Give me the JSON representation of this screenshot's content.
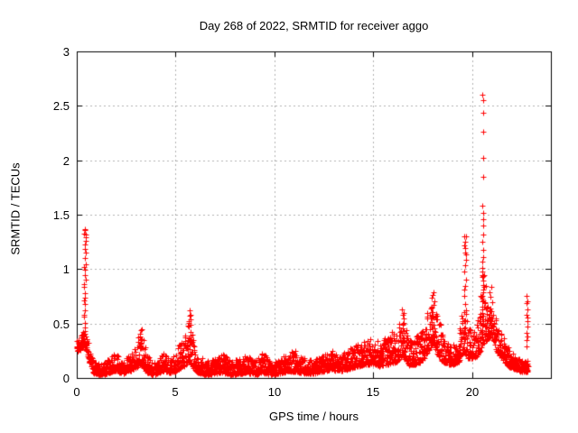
{
  "window": {
    "background": "#ffffff"
  },
  "chart_data": {
    "type": "scatter",
    "title": "Day 268 of 2022, SRMTID for receiver aggo",
    "xlabel": "GPS time / hours",
    "ylabel": "SRMTID / TECUs",
    "xlim": [
      0,
      24
    ],
    "ylim": [
      0,
      3
    ],
    "grid": true,
    "legend": "none",
    "marker": "plus",
    "marker_color": "#ff0000",
    "grid_color": "#b0b0b0",
    "border_color": "#000000",
    "xticks": [
      {
        "v": 0,
        "label": "0"
      },
      {
        "v": 5,
        "label": "5"
      },
      {
        "v": 10,
        "label": "10"
      },
      {
        "v": 15,
        "label": "15"
      },
      {
        "v": 20,
        "label": "20"
      }
    ],
    "yticks": [
      {
        "v": 0,
        "label": "0"
      },
      {
        "v": 0.5,
        "label": "0.5"
      },
      {
        "v": 1,
        "label": "1"
      },
      {
        "v": 1.5,
        "label": "1.5"
      },
      {
        "v": 2,
        "label": "2"
      },
      {
        "v": 2.5,
        "label": "2.5"
      },
      {
        "v": 3,
        "label": "3"
      }
    ],
    "band_envelope_t_lo_hi": [
      [
        0.0,
        0.24,
        0.38
      ],
      [
        0.2,
        0.26,
        0.4
      ],
      [
        0.35,
        0.3,
        0.5
      ],
      [
        0.5,
        0.25,
        0.42
      ],
      [
        0.65,
        0.12,
        0.28
      ],
      [
        0.85,
        0.04,
        0.15
      ],
      [
        1.3,
        0.03,
        0.13
      ],
      [
        1.7,
        0.05,
        0.2
      ],
      [
        2.0,
        0.07,
        0.24
      ],
      [
        2.3,
        0.04,
        0.15
      ],
      [
        2.6,
        0.06,
        0.2
      ],
      [
        2.9,
        0.08,
        0.26
      ],
      [
        3.15,
        0.12,
        0.4
      ],
      [
        3.3,
        0.12,
        0.42
      ],
      [
        3.5,
        0.06,
        0.25
      ],
      [
        3.8,
        0.03,
        0.13
      ],
      [
        4.1,
        0.04,
        0.16
      ],
      [
        4.4,
        0.07,
        0.24
      ],
      [
        4.7,
        0.05,
        0.17
      ],
      [
        5.0,
        0.06,
        0.22
      ],
      [
        5.3,
        0.1,
        0.38
      ],
      [
        5.55,
        0.12,
        0.45
      ],
      [
        5.7,
        0.15,
        0.58
      ],
      [
        5.85,
        0.1,
        0.42
      ],
      [
        6.1,
        0.05,
        0.22
      ],
      [
        6.5,
        0.03,
        0.16
      ],
      [
        7.0,
        0.04,
        0.2
      ],
      [
        7.4,
        0.05,
        0.23
      ],
      [
        7.8,
        0.03,
        0.16
      ],
      [
        8.2,
        0.04,
        0.18
      ],
      [
        8.6,
        0.05,
        0.21
      ],
      [
        9.0,
        0.03,
        0.16
      ],
      [
        9.4,
        0.05,
        0.25
      ],
      [
        9.8,
        0.03,
        0.15
      ],
      [
        10.2,
        0.04,
        0.17
      ],
      [
        10.7,
        0.06,
        0.24
      ],
      [
        11.1,
        0.06,
        0.25
      ],
      [
        11.5,
        0.04,
        0.18
      ],
      [
        12.0,
        0.04,
        0.16
      ],
      [
        12.5,
        0.06,
        0.22
      ],
      [
        12.9,
        0.08,
        0.25
      ],
      [
        13.3,
        0.06,
        0.21
      ],
      [
        13.7,
        0.08,
        0.26
      ],
      [
        14.1,
        0.1,
        0.3
      ],
      [
        14.5,
        0.12,
        0.34
      ],
      [
        15.0,
        0.13,
        0.38
      ],
      [
        15.4,
        0.1,
        0.34
      ],
      [
        15.8,
        0.13,
        0.4
      ],
      [
        16.2,
        0.15,
        0.45
      ],
      [
        16.5,
        0.2,
        0.58
      ],
      [
        16.8,
        0.12,
        0.35
      ],
      [
        17.2,
        0.12,
        0.38
      ],
      [
        17.6,
        0.18,
        0.48
      ],
      [
        17.9,
        0.28,
        0.7
      ],
      [
        18.05,
        0.3,
        0.76
      ],
      [
        18.3,
        0.2,
        0.55
      ],
      [
        18.6,
        0.14,
        0.36
      ],
      [
        19.0,
        0.12,
        0.3
      ],
      [
        19.35,
        0.15,
        0.38
      ],
      [
        19.6,
        0.25,
        0.85
      ],
      [
        19.8,
        0.18,
        0.45
      ],
      [
        20.1,
        0.18,
        0.45
      ],
      [
        20.35,
        0.22,
        0.55
      ],
      [
        20.55,
        0.3,
        1.05
      ],
      [
        20.75,
        0.35,
        0.8
      ],
      [
        21.0,
        0.4,
        0.75
      ],
      [
        21.25,
        0.25,
        0.55
      ],
      [
        21.5,
        0.18,
        0.42
      ],
      [
        21.9,
        0.1,
        0.26
      ],
      [
        22.3,
        0.07,
        0.19
      ],
      [
        22.6,
        0.05,
        0.15
      ],
      [
        22.85,
        0.06,
        0.16
      ]
    ],
    "spike_columns": [
      {
        "t": 0.42,
        "spread": 0.05,
        "min": 0.4,
        "max": 1.37,
        "n": 26
      },
      {
        "t": 3.25,
        "spread": 0.06,
        "min": 0.28,
        "max": 0.46,
        "n": 8
      },
      {
        "t": 5.72,
        "spread": 0.05,
        "min": 0.3,
        "max": 0.61,
        "n": 10
      },
      {
        "t": 16.5,
        "spread": 0.07,
        "min": 0.35,
        "max": 0.63,
        "n": 10
      },
      {
        "t": 18.0,
        "spread": 0.1,
        "min": 0.4,
        "max": 0.8,
        "n": 14
      },
      {
        "t": 19.65,
        "spread": 0.05,
        "min": 0.35,
        "max": 1.3,
        "n": 18
      },
      {
        "t": 20.55,
        "spread": 0.04,
        "min": 0.35,
        "max": 1.1,
        "n": 20
      },
      {
        "t": 20.95,
        "spread": 0.07,
        "min": 0.45,
        "max": 0.82,
        "n": 10
      },
      {
        "t": 22.8,
        "spread": 0.04,
        "min": 0.3,
        "max": 0.76,
        "n": 12
      }
    ],
    "outlier_points": [
      [
        20.53,
        2.6
      ],
      [
        20.56,
        2.55
      ],
      [
        20.55,
        2.44
      ],
      [
        20.56,
        2.26
      ],
      [
        20.55,
        2.02
      ],
      [
        20.57,
        1.85
      ],
      [
        20.54,
        1.58
      ],
      [
        20.56,
        1.52
      ],
      [
        20.55,
        1.46
      ],
      [
        20.55,
        1.4
      ],
      [
        20.56,
        1.32
      ],
      [
        20.54,
        1.25
      ],
      [
        20.55,
        1.18
      ],
      [
        19.63,
        1.3
      ],
      [
        19.61,
        1.22
      ],
      [
        19.64,
        1.15
      ],
      [
        0.42,
        1.37
      ],
      [
        0.44,
        1.32
      ]
    ],
    "render_hints": {
      "t_end": 22.85,
      "step_hours": 0.02,
      "points_per_step": 2,
      "extra_point_prob": 0.4,
      "low_bias": 1.8,
      "seed": 1337
    }
  }
}
